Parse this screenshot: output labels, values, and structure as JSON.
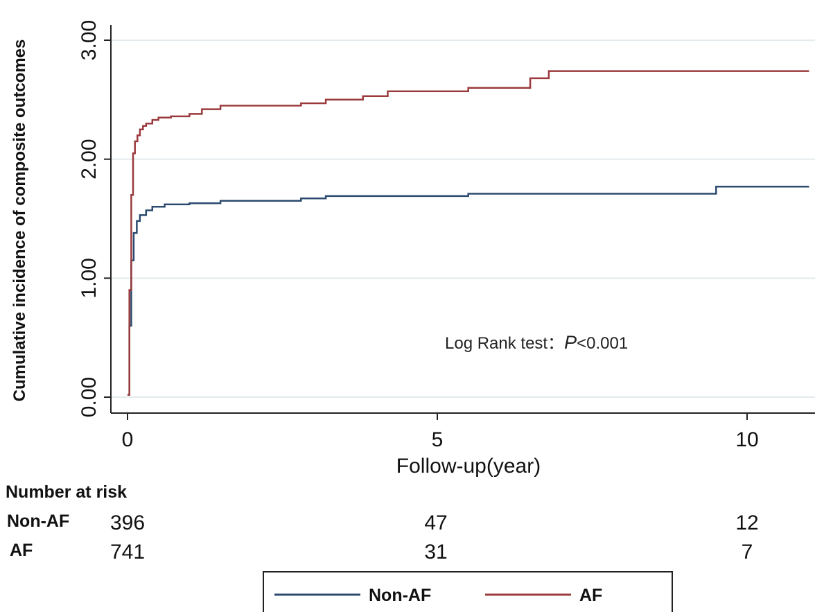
{
  "chart_data": {
    "type": "line",
    "step": true,
    "ylabel": "Cumulative incidence of composite outcomes",
    "xlabel": "Follow-up(year)",
    "xlim": [
      0,
      11
    ],
    "ylim": [
      0,
      3
    ],
    "xticks": [
      0,
      5,
      10
    ],
    "yticks": [
      0,
      1,
      2,
      3
    ],
    "ytick_labels": [
      "0.00",
      "1.00",
      "2.00",
      "3.00"
    ],
    "grid": "horizontal",
    "annotation": {
      "text_before": "Log Rank test：",
      "p_symbol": "P",
      "text_after": "<0.001"
    },
    "series": [
      {
        "name": "Non-AF",
        "color": "#2b4a6e",
        "x": [
          0,
          0.03,
          0.06,
          0.1,
          0.15,
          0.2,
          0.3,
          0.4,
          0.6,
          1.0,
          1.5,
          2.8,
          3.2,
          5.5,
          9.5,
          11
        ],
        "y": [
          0.02,
          0.6,
          1.15,
          1.38,
          1.48,
          1.53,
          1.57,
          1.6,
          1.62,
          1.63,
          1.65,
          1.67,
          1.69,
          1.71,
          1.77,
          1.77
        ]
      },
      {
        "name": "AF",
        "color": "#9b3a3c",
        "x": [
          0,
          0.03,
          0.06,
          0.09,
          0.12,
          0.16,
          0.2,
          0.25,
          0.3,
          0.4,
          0.5,
          0.7,
          1.0,
          1.2,
          1.5,
          2.8,
          3.2,
          3.8,
          4.2,
          5.5,
          6.5,
          6.8,
          11
        ],
        "y": [
          0.02,
          0.9,
          1.7,
          2.05,
          2.15,
          2.2,
          2.25,
          2.28,
          2.3,
          2.33,
          2.35,
          2.36,
          2.38,
          2.42,
          2.45,
          2.47,
          2.5,
          2.53,
          2.57,
          2.6,
          2.68,
          2.74,
          2.74
        ]
      }
    ],
    "risk_table": {
      "title": "Number at risk",
      "times": [
        0,
        5,
        10
      ],
      "rows": [
        {
          "label": "Non-AF",
          "values": [
            "396",
            "47",
            "12"
          ]
        },
        {
          "label": "AF",
          "values": [
            "741",
            "31",
            "7"
          ]
        }
      ]
    },
    "legend": {
      "placement": "bottom",
      "entries": [
        {
          "label": "Non-AF",
          "color": "#2b4a6e"
        },
        {
          "label": "AF",
          "color": "#9b3a3c"
        }
      ]
    }
  }
}
